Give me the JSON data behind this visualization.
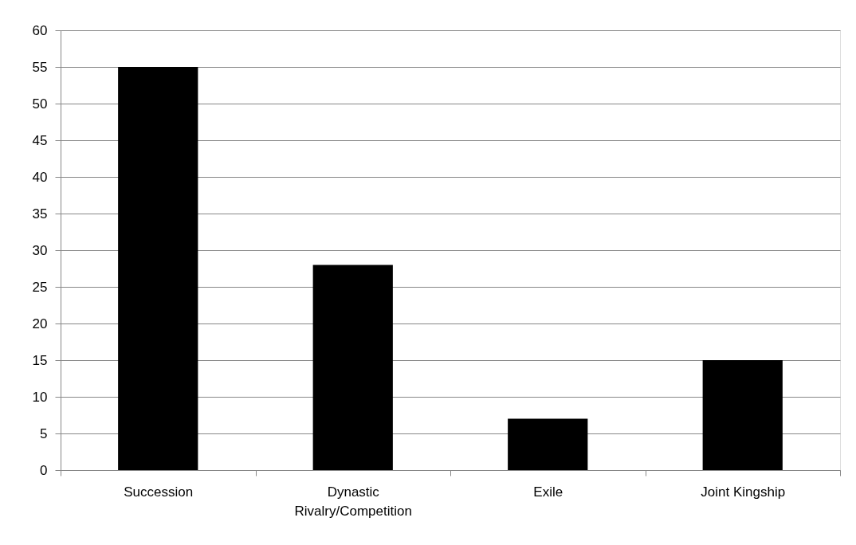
{
  "chart_data": {
    "type": "bar",
    "categories": [
      "Succession",
      "Dynastic Rivalry/Competition",
      "Exile",
      "Joint Kingship"
    ],
    "values": [
      55,
      28,
      7,
      15
    ],
    "color": "#000000",
    "ylim": [
      0,
      60
    ],
    "yticks": [
      0,
      5,
      10,
      15,
      20,
      25,
      30,
      35,
      40,
      45,
      50,
      55,
      60
    ],
    "grid": "y"
  }
}
